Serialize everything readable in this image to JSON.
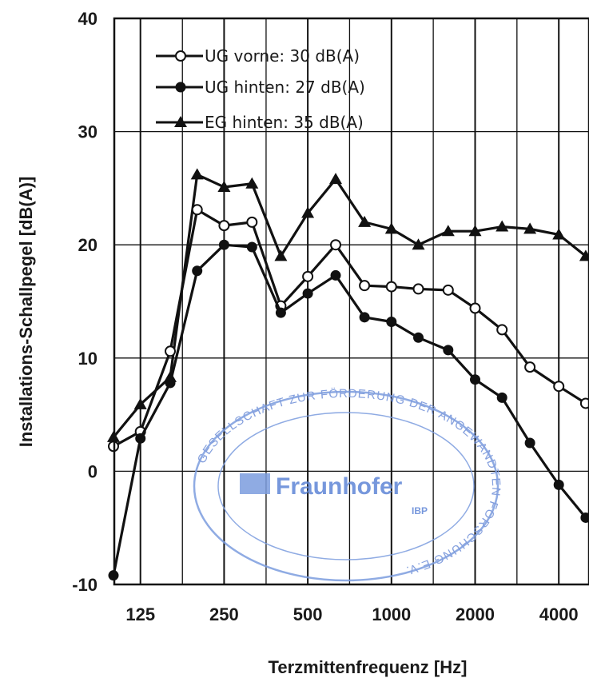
{
  "chart_data": {
    "type": "line",
    "xlabel": "Terzmittenfrequenz [Hz]",
    "ylabel": "Installations-Schallpegel [dB(A)]",
    "ylim": [
      -10,
      40
    ],
    "yticks": [
      -10,
      0,
      10,
      20,
      30,
      40
    ],
    "xscale": "log",
    "x": [
      100,
      125,
      160,
      200,
      250,
      315,
      400,
      500,
      630,
      800,
      1000,
      1250,
      1600,
      2000,
      2500,
      3150,
      4000,
      5000
    ],
    "xtick_values": [
      125,
      250,
      500,
      1000,
      2000,
      4000
    ],
    "xtick_labels": [
      "125",
      "250",
      "500",
      "1000",
      "2000",
      "4000"
    ],
    "grid": true,
    "legend_position": "top-left",
    "series": [
      {
        "name": "UG vorne: 30 dB(A)",
        "marker": "circle-open",
        "values": [
          2.2,
          3.5,
          10.6,
          23.1,
          21.7,
          22.0,
          14.6,
          17.2,
          20.0,
          16.4,
          16.3,
          16.1,
          16.0,
          14.4,
          12.5,
          9.2,
          7.5,
          6.0
        ]
      },
      {
        "name": "UG hinten: 27 dB(A)",
        "marker": "circle-filled",
        "values": [
          -9.2,
          2.9,
          7.8,
          17.7,
          20.0,
          19.8,
          14.0,
          15.7,
          17.3,
          13.6,
          13.2,
          11.8,
          10.7,
          8.1,
          6.5,
          2.5,
          -1.2,
          -4.1
        ]
      },
      {
        "name": "EG hinten: 35 dB(A)",
        "marker": "triangle-filled",
        "values": [
          3.0,
          5.9,
          8.3,
          26.2,
          25.1,
          25.4,
          19.0,
          22.8,
          25.8,
          22.0,
          21.4,
          20.0,
          21.2,
          21.2,
          21.6,
          21.4,
          20.9,
          19.0
        ]
      }
    ]
  },
  "stamp": {
    "logo": "Fraunhofer",
    "institute": "IBP",
    "ring_text": "GESELLSCHAFT ZUR FÖRDERUNG DER ANGEWANDTEN FORSCHUNG E.V."
  },
  "colors": {
    "line": "#111111",
    "grid": "#111111",
    "stamp": "#5f86d6"
  }
}
